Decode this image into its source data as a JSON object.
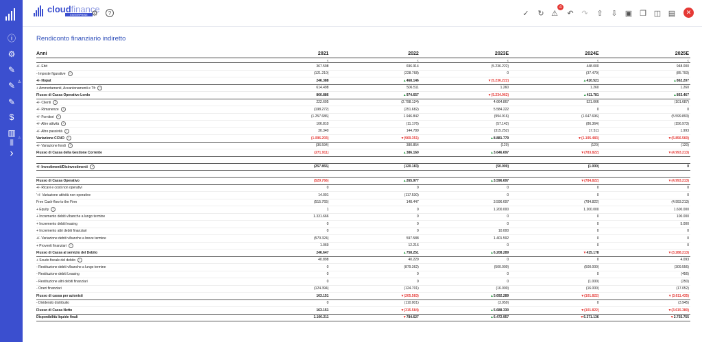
{
  "app": {
    "brand": "cloud",
    "brand_light": "finance",
    "brand_sub": "ENTERPRISE",
    "colors": {
      "accent": "#3b4fcf",
      "positive": "#2e9d47",
      "negative": "#e53935"
    }
  },
  "header": {
    "gear_icon": "gear-icon",
    "help_icon": "help-icon",
    "notifications_count": "4"
  },
  "page": {
    "title": "Rendiconto finanziario indiretto"
  },
  "table": {
    "header_label": "Anni",
    "years": [
      "2021",
      "2022",
      "2023E",
      "2024E",
      "2025E"
    ],
    "unit": "€",
    "rows": [
      {
        "label": "+/- Ebit",
        "info": false,
        "bold": false,
        "cells": [
          {
            "v": "367.598"
          },
          {
            "v": "696.914"
          },
          {
            "v": "(5.236.222)"
          },
          {
            "v": "448.000"
          },
          {
            "v": "948.000"
          }
        ]
      },
      {
        "label": "- Imposte figurative",
        "info": true,
        "bold": false,
        "cells": [
          {
            "v": "(121.210)"
          },
          {
            "v": "(228.768)"
          },
          {
            "v": "0"
          },
          {
            "v": "(37.479)"
          },
          {
            "v": "(85.793)"
          }
        ]
      },
      {
        "label": "+/- Nopat",
        "info": false,
        "bold": true,
        "cells": [
          {
            "v": "246.388"
          },
          {
            "v": "468.146",
            "t": "up"
          },
          {
            "v": "(5.236.222)",
            "t": "dn",
            "neg": true
          },
          {
            "v": "410.521",
            "t": "up"
          },
          {
            "v": "862.207",
            "t": "up"
          }
        ]
      },
      {
        "label": "+ Ammortamenti, Accantonamenti e Tfr",
        "info": true,
        "bold": false,
        "cells": [
          {
            "v": "614.498"
          },
          {
            "v": "506.511"
          },
          {
            "v": "1.260"
          },
          {
            "v": "1.260"
          },
          {
            "v": "1.260"
          }
        ]
      },
      {
        "label": "Flusso di Cassa Operativo Lordo",
        "info": false,
        "bold": true,
        "cells": [
          {
            "v": "860.886"
          },
          {
            "v": "974.657",
            "t": "up"
          },
          {
            "v": "(5.234.962)",
            "t": "dn",
            "neg": true
          },
          {
            "v": "411.781",
            "t": "up"
          },
          {
            "v": "863.467",
            "t": "up"
          }
        ]
      },
      {
        "label": "+/- Clienti",
        "info": true,
        "bold": false,
        "cells": [
          {
            "v": "222.605"
          },
          {
            "v": "(2.798.124)"
          },
          {
            "v": "4.664.867"
          },
          {
            "v": "521.066"
          },
          {
            "v": "(101.687)"
          }
        ]
      },
      {
        "label": "+/- Rimanenze",
        "info": true,
        "bold": false,
        "cells": [
          {
            "v": "(198.272)"
          },
          {
            "v": "(251.682)"
          },
          {
            "v": "5.584.222"
          },
          {
            "v": "0"
          },
          {
            "v": "0"
          }
        ]
      },
      {
        "label": "+/- Fornitori",
        "info": true,
        "bold": false,
        "cells": [
          {
            "v": "(1.257.686)"
          },
          {
            "v": "1.946.842"
          },
          {
            "v": "(994.916)"
          },
          {
            "v": "(1.647.696)"
          },
          {
            "v": "(5.599.893)"
          }
        ]
      },
      {
        "label": "+/- Altre attività",
        "info": true,
        "bold": false,
        "cells": [
          {
            "v": "106.810"
          },
          {
            "v": "(11.176)"
          },
          {
            "v": "(57.142)"
          },
          {
            "v": "(86.364)"
          },
          {
            "v": "(156.973)"
          }
        ]
      },
      {
        "label": "+/- Altre passività",
        "info": true,
        "bold": false,
        "cells": [
          {
            "v": "30.340"
          },
          {
            "v": "144.789"
          },
          {
            "v": "(315.252)"
          },
          {
            "v": "17.511"
          },
          {
            "v": "1.993"
          }
        ]
      },
      {
        "label": "Variazione CCNO",
        "info": true,
        "bold": true,
        "cells": [
          {
            "v": "(1.096.203)",
            "neg": true
          },
          {
            "v": "(969.351)",
            "t": "dn",
            "neg": true
          },
          {
            "v": "8.881.779",
            "t": "up"
          },
          {
            "v": "(1.195.483)",
            "t": "dn",
            "neg": true
          },
          {
            "v": "(5.856.560)",
            "t": "dn",
            "neg": true
          }
        ]
      },
      {
        "label": "+/- Variazione fondi",
        "info": true,
        "bold": false,
        "cells": [
          {
            "v": "(36.594)"
          },
          {
            "v": "380.854"
          },
          {
            "v": "(120)"
          },
          {
            "v": "(120)"
          },
          {
            "v": "(120)"
          }
        ]
      },
      {
        "label": "Flusso di Cassa della Gestione Corrente",
        "info": false,
        "bold": true,
        "cells": [
          {
            "v": "(271.911)",
            "neg": true
          },
          {
            "v": "386.160",
            "t": "up"
          },
          {
            "v": "3.646.697",
            "t": "up"
          },
          {
            "v": "(783.822)",
            "t": "dn",
            "neg": true
          },
          {
            "v": "(4.993.213)",
            "t": "dn",
            "neg": true
          }
        ]
      },
      {
        "label": "",
        "spacer": true,
        "cells": []
      },
      {
        "label": "+/- Investimenti/Disinvestimenti",
        "info": true,
        "bold": true,
        "cells": [
          {
            "v": "(257.855)"
          },
          {
            "v": "(120.183)"
          },
          {
            "v": "(50.000)"
          },
          {
            "v": "(1.000)"
          },
          {
            "v": "0"
          }
        ]
      },
      {
        "label": "",
        "spacer": true,
        "cells": []
      },
      {
        "label": "Flusso di Cassa Operativo",
        "info": false,
        "bold": true,
        "cells": [
          {
            "v": "(529.766)",
            "neg": true
          },
          {
            "v": "265.977",
            "t": "up"
          },
          {
            "v": "3.596.697",
            "t": "up"
          },
          {
            "v": "(784.822)",
            "t": "dn",
            "neg": true
          },
          {
            "v": "(4.993.213)",
            "t": "dn",
            "neg": true
          }
        ]
      },
      {
        "label": "+/- Ricavi e costi non operativi",
        "info": false,
        "bold": false,
        "cells": [
          {
            "v": "0"
          },
          {
            "v": "0"
          },
          {
            "v": "0"
          },
          {
            "v": "0"
          },
          {
            "v": "0"
          }
        ]
      },
      {
        "label": "'+/- Variazione attività non operative",
        "info": false,
        "bold": false,
        "cells": [
          {
            "v": "14.001"
          },
          {
            "v": "(117.530)"
          },
          {
            "v": "0"
          },
          {
            "v": "0"
          },
          {
            "v": "0"
          }
        ]
      },
      {
        "label": "Free Cash-flow to the Firm",
        "info": false,
        "bold": false,
        "cells": [
          {
            "v": "(515.765)"
          },
          {
            "v": "148.447"
          },
          {
            "v": "3.596.697"
          },
          {
            "v": "(784.822)"
          },
          {
            "v": "(4.993.213)"
          }
        ]
      },
      {
        "label": "+ Equity",
        "info": true,
        "bold": false,
        "cells": [
          {
            "v": "1"
          },
          {
            "v": "0"
          },
          {
            "v": "1.200.000"
          },
          {
            "v": "1.200.000"
          },
          {
            "v": "1.600.000"
          }
        ]
      },
      {
        "label": "+ Incremento debiti v/banche a lungo termine",
        "info": false,
        "bold": false,
        "cells": [
          {
            "v": "1.331.666"
          },
          {
            "v": "0"
          },
          {
            "v": "0"
          },
          {
            "v": "0"
          },
          {
            "v": "100.000"
          }
        ]
      },
      {
        "label": "+ Incremento debiti leasing",
        "info": false,
        "bold": false,
        "cells": [
          {
            "v": "0"
          },
          {
            "v": "0"
          },
          {
            "v": "0"
          },
          {
            "v": "0"
          },
          {
            "v": "5.000"
          }
        ]
      },
      {
        "label": "+ Incremento altri debiti finanziari",
        "info": false,
        "bold": false,
        "cells": [
          {
            "v": "0"
          },
          {
            "v": "0"
          },
          {
            "v": "10.000"
          },
          {
            "v": "0"
          },
          {
            "v": "0"
          }
        ]
      },
      {
        "label": "+/- Variazione debiti v/banche a breve termine",
        "info": false,
        "bold": false,
        "cells": [
          {
            "v": "(570.324)"
          },
          {
            "v": "597.588"
          },
          {
            "v": "1.401.592"
          },
          {
            "v": "0"
          },
          {
            "v": "0"
          }
        ]
      },
      {
        "label": "+ Proventi finanziari",
        "info": true,
        "bold": false,
        "cells": [
          {
            "v": "1.069"
          },
          {
            "v": "12.216"
          },
          {
            "v": "0"
          },
          {
            "v": "0"
          },
          {
            "v": "0"
          }
        ]
      },
      {
        "label": "Flusso di Cassa al servizio del Debito",
        "info": false,
        "bold": true,
        "cells": [
          {
            "v": "246.647"
          },
          {
            "v": "758.251",
            "t": "up"
          },
          {
            "v": "6.208.289",
            "t": "up"
          },
          {
            "v": "415.178",
            "t": "dn"
          },
          {
            "v": "(3.288.213)",
            "t": "dn",
            "neg": true
          }
        ]
      },
      {
        "label": "+ Scudo fiscale del debito",
        "info": true,
        "bold": false,
        "cells": [
          {
            "v": "40.898"
          },
          {
            "v": "40.229"
          },
          {
            "v": "0"
          },
          {
            "v": "0"
          },
          {
            "v": "4.093"
          }
        ]
      },
      {
        "label": "- Restituzione debiti v/banche a lungo termine",
        "info": false,
        "bold": false,
        "cells": [
          {
            "v": "0"
          },
          {
            "v": "(879.362)"
          },
          {
            "v": "(500.000)"
          },
          {
            "v": "(500.000)"
          },
          {
            "v": "(309.556)"
          }
        ]
      },
      {
        "label": "- Restituzione debiti Leasing",
        "info": false,
        "bold": false,
        "cells": [
          {
            "v": "0"
          },
          {
            "v": "0"
          },
          {
            "v": "0"
          },
          {
            "v": "0"
          },
          {
            "v": "(456)"
          }
        ]
      },
      {
        "label": "- Restituzione altri debiti finanziari",
        "info": false,
        "bold": false,
        "cells": [
          {
            "v": "0"
          },
          {
            "v": "0"
          },
          {
            "v": "0"
          },
          {
            "v": "(1.000)"
          },
          {
            "v": "(250)"
          }
        ]
      },
      {
        "label": "- Oneri finanziari",
        "info": false,
        "bold": false,
        "cells": [
          {
            "v": "(124.394)"
          },
          {
            "v": "(124.701)"
          },
          {
            "v": "(16.000)"
          },
          {
            "v": "(16.000)"
          },
          {
            "v": "(17.052)"
          }
        ]
      },
      {
        "label": "Flusso di cassa per azionisti",
        "info": false,
        "bold": true,
        "cells": [
          {
            "v": "163.151"
          },
          {
            "v": "(205.583)",
            "t": "dn",
            "neg": true
          },
          {
            "v": "5.692.289",
            "t": "up"
          },
          {
            "v": "(101.822)",
            "t": "dn",
            "neg": true
          },
          {
            "v": "(3.611.435)",
            "t": "dn",
            "neg": true
          }
        ]
      },
      {
        "label": "- Dividendo distribuito",
        "info": false,
        "bold": false,
        "cells": [
          {
            "v": "0"
          },
          {
            "v": "(110.001)"
          },
          {
            "v": "(3.959)"
          },
          {
            "v": "0"
          },
          {
            "v": "(3.945)"
          }
        ]
      },
      {
        "label": "Flusso di Cassa Netto",
        "info": false,
        "bold": true,
        "cells": [
          {
            "v": "163.151"
          },
          {
            "v": "(315.584)",
            "t": "dn",
            "neg": true
          },
          {
            "v": "5.688.330",
            "t": "up"
          },
          {
            "v": "(101.822)",
            "t": "dn",
            "neg": true
          },
          {
            "v": "(3.615.380)",
            "t": "dn",
            "neg": true
          }
        ]
      },
      {
        "label": "Disponibilità liquide finali",
        "info": false,
        "bold": true,
        "cells": [
          {
            "v": "1.100.211"
          },
          {
            "v": "784.627",
            "t": "dn"
          },
          {
            "v": "6.472.957",
            "t": "up"
          },
          {
            "v": "6.371.136",
            "t": "dn"
          },
          {
            "v": "2.755.755",
            "t": "dn"
          }
        ]
      }
    ]
  }
}
